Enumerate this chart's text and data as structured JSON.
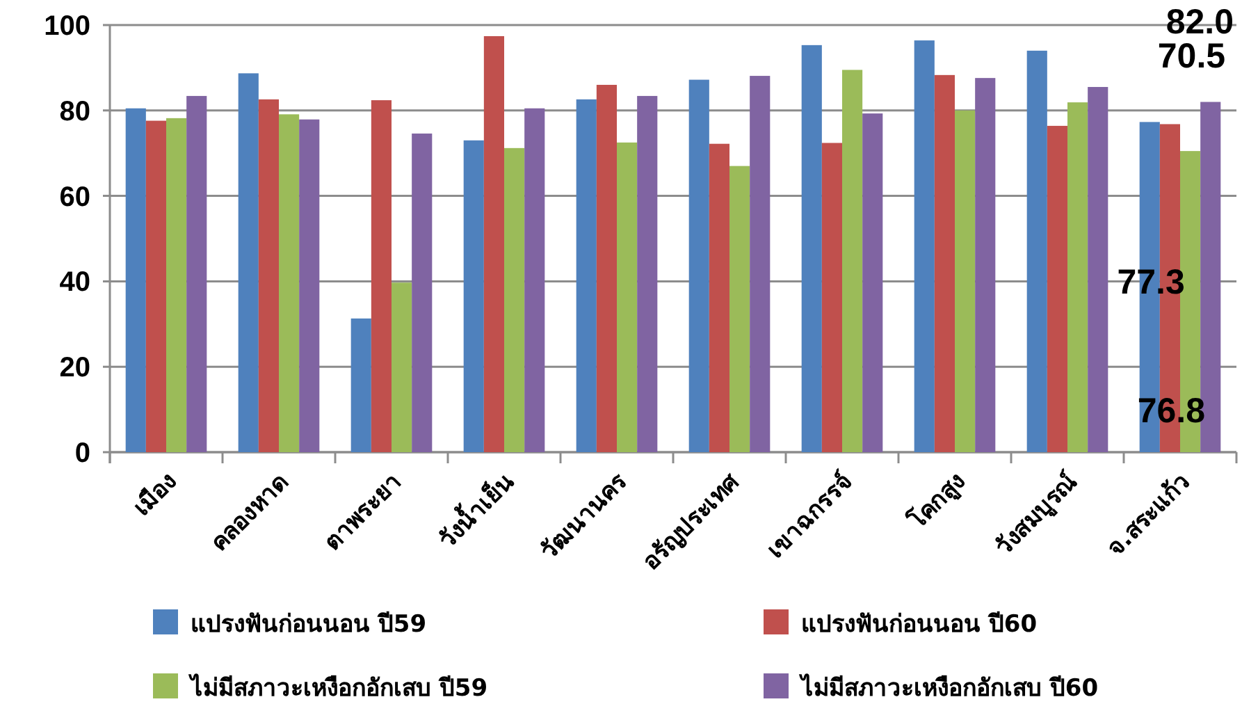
{
  "chart_data": {
    "type": "bar",
    "categories": [
      "เมือง",
      "คลองหาด",
      "ตาพระยา",
      "วังน้ำเย็น",
      "วัฒนานคร",
      "อรัญประเทศ",
      "เขาฉกรรจ์",
      "โคกสูง",
      "วังสมบูรณ์",
      "จ.สระแก้ว"
    ],
    "series": [
      {
        "name": "แปรงฟันก่อนนอน ปี59",
        "color": "#4f81bd",
        "values": [
          80.5,
          88.7,
          31.3,
          73.0,
          82.6,
          87.2,
          95.3,
          96.4,
          94.0,
          77.3
        ],
        "value_labels": [
          null,
          null,
          null,
          null,
          null,
          null,
          null,
          null,
          null,
          "77.3"
        ]
      },
      {
        "name": "แปรงฟันก่อนนอน ปี60",
        "color": "#c0504d",
        "values": [
          77.6,
          82.6,
          82.4,
          97.4,
          86.0,
          72.2,
          72.4,
          88.3,
          76.4,
          76.8
        ],
        "value_labels": [
          null,
          null,
          null,
          null,
          null,
          null,
          null,
          null,
          null,
          "76.8"
        ]
      },
      {
        "name": "ไม่มีสภาวะเหงือกอักเสบ ปี59",
        "color": "#9bbb59",
        "values": [
          78.2,
          79.1,
          39.7,
          71.2,
          72.5,
          67.0,
          89.5,
          80.0,
          81.9,
          70.5
        ],
        "value_labels": [
          null,
          null,
          null,
          null,
          null,
          null,
          null,
          null,
          null,
          "70.5"
        ]
      },
      {
        "name": "ไม่มีสภาวะเหงือกอักเสบ ปี60",
        "color": "#8064a2",
        "values": [
          83.4,
          77.9,
          74.6,
          80.5,
          83.4,
          88.1,
          79.3,
          87.6,
          85.5,
          82.0
        ],
        "value_labels": [
          null,
          null,
          null,
          null,
          null,
          null,
          null,
          null,
          null,
          "82.0"
        ]
      }
    ],
    "ylim": [
      0,
      100
    ],
    "yticks": [
      0,
      20,
      40,
      60,
      80,
      100
    ],
    "grid": "y",
    "legend": "bottom"
  }
}
